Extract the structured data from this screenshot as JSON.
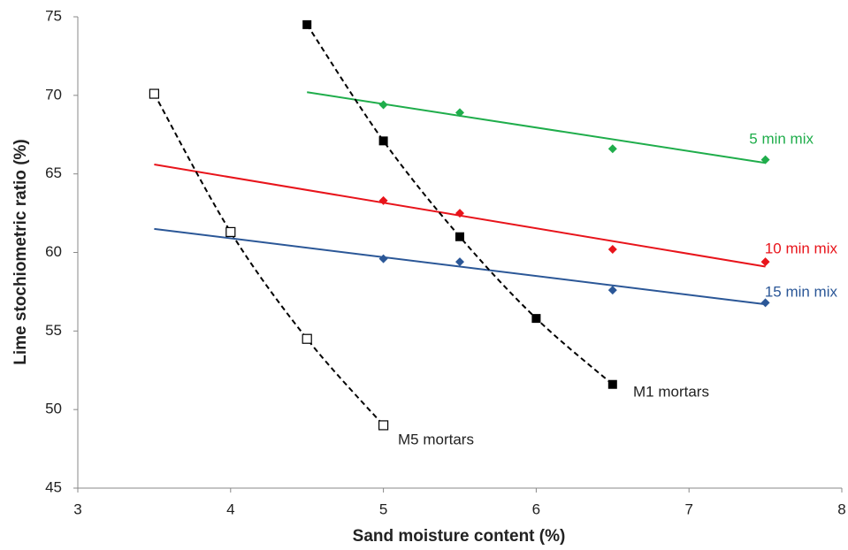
{
  "chart_data": {
    "type": "scatter",
    "x_label": "Sand moisture content (%)",
    "y_label": "Lime stochiometric ratio (%)",
    "xlim": [
      3,
      8
    ],
    "xticks": [
      3,
      4,
      5,
      6,
      7,
      8
    ],
    "ylim": [
      45,
      75
    ],
    "yticks": [
      45,
      50,
      55,
      60,
      65,
      70,
      75
    ],
    "grid": false,
    "series": [
      {
        "name": "5 min mix",
        "color": "#1fad4b",
        "marker": "diamond",
        "x": [
          5,
          5.5,
          6.5,
          7.5
        ],
        "values": [
          69.4,
          68.9,
          66.6,
          65.9
        ],
        "trend": {
          "x": [
            4.5,
            7.5
          ],
          "values": [
            70.2,
            65.7
          ]
        }
      },
      {
        "name": "10 min mix",
        "color": "#e8141b",
        "marker": "diamond",
        "x": [
          5,
          5.5,
          6.5,
          7.5
        ],
        "values": [
          63.3,
          62.5,
          60.2,
          59.4
        ],
        "trend": {
          "x": [
            3.5,
            7.5
          ],
          "values": [
            65.6,
            59.1
          ]
        }
      },
      {
        "name": "15 min mix",
        "color": "#2b5797",
        "marker": "diamond",
        "x": [
          5,
          5.5,
          6.5,
          7.5
        ],
        "values": [
          59.6,
          59.4,
          57.6,
          56.8
        ],
        "trend": {
          "x": [
            3.5,
            7.5
          ],
          "values": [
            61.5,
            56.7
          ]
        }
      },
      {
        "name": "M1 mortars",
        "color": "#000000",
        "marker": "filled-square",
        "line": "dashed-curve",
        "x": [
          4.5,
          5,
          5.5,
          6,
          6.5
        ],
        "values": [
          74.5,
          67.1,
          61.0,
          55.8,
          51.6
        ]
      },
      {
        "name": "M5 mortars",
        "color": "#000000",
        "marker": "open-square",
        "line": "dashed-curve",
        "x": [
          3.5,
          4,
          4.5,
          5
        ],
        "values": [
          70.1,
          61.3,
          54.5,
          49.0
        ]
      }
    ]
  }
}
